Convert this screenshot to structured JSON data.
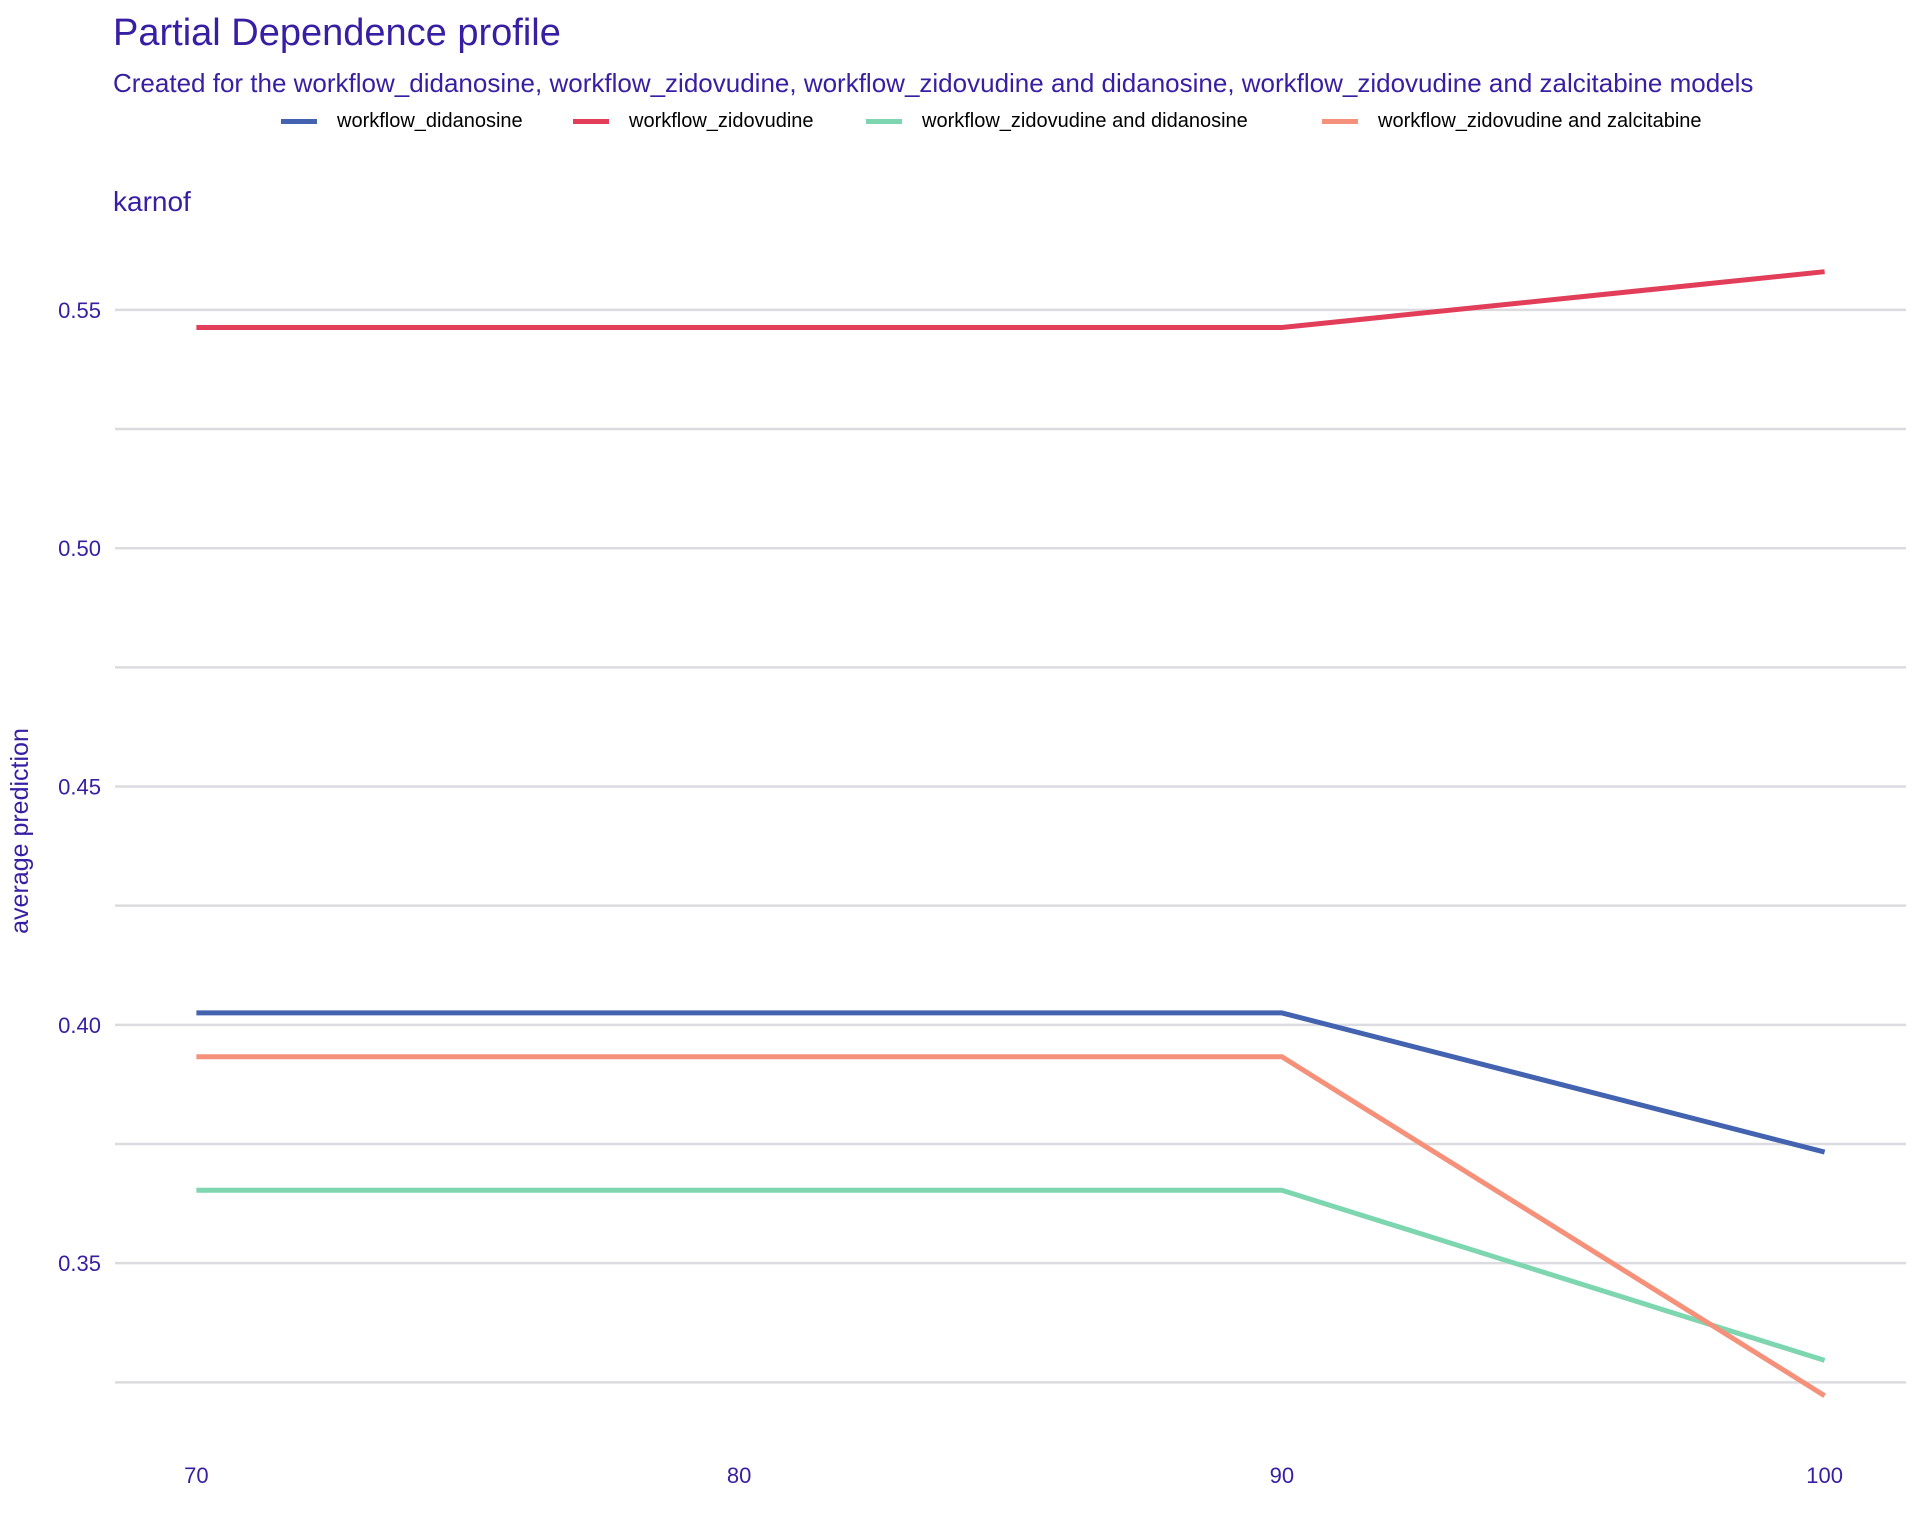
{
  "title": "Partial Dependence profile",
  "subtitle": "Created for the workflow_didanosine, workflow_zidovudine, workflow_zidovudine and didanosine, workflow_zidovudine and zalcitabine models",
  "chart_data": {
    "type": "line",
    "facet": "karnof",
    "xlabel": "",
    "ylabel": "average prediction",
    "x": [
      70,
      90,
      100
    ],
    "xticks": [
      70,
      80,
      90,
      100
    ],
    "yticks": [
      0.35,
      0.4,
      0.45,
      0.5,
      0.55
    ],
    "xlim": [
      68.5,
      101.5
    ],
    "ylim": [
      0.315,
      0.572
    ],
    "grid": "horizontal",
    "legend_position": "top",
    "series": [
      {
        "name": "workflow_didanosine",
        "color": "#4363b0",
        "values": [
          0.4025,
          0.4025,
          0.3733
        ]
      },
      {
        "name": "workflow_zidovudine",
        "color": "#e23e5a",
        "values": [
          0.5463,
          0.5463,
          0.558
        ]
      },
      {
        "name": "workflow_zidovudine and didanosine",
        "color": "#7ed6b0",
        "values": [
          0.3653,
          0.3653,
          0.3296
        ]
      },
      {
        "name": "workflow_zidovudine and zalcitabine",
        "color": "#f5917a",
        "values": [
          0.3933,
          0.3933,
          0.3222
        ]
      }
    ]
  }
}
